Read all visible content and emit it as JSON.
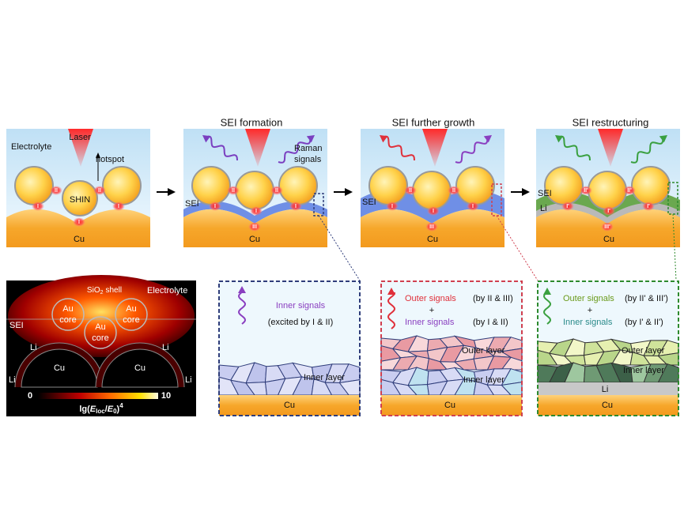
{
  "top_panels": [
    {
      "electrolyte": "Electrolyte",
      "laser": "Laser",
      "hotspot": "hotspot",
      "particle": "SHIN",
      "substrate": "Cu",
      "hotspots": [
        "II",
        "II",
        "I",
        "I",
        "I"
      ]
    },
    {
      "title": "SEI formation",
      "raman": [
        "Raman",
        "signals"
      ],
      "sei": "SEI",
      "substrate": "Cu",
      "hotspots": [
        "II",
        "II",
        "I",
        "I",
        "I",
        "III"
      ]
    },
    {
      "title": "SEI further growth",
      "sei": "SEI",
      "substrate": "Cu",
      "hotspots": [
        "II",
        "II",
        "I",
        "I",
        "I",
        "III"
      ]
    },
    {
      "title": "SEI restructuring",
      "sei": "SEI",
      "li": "Li",
      "substrate": "Cu",
      "hotspots": [
        "II'",
        "II'",
        "I'",
        "I'",
        "I'",
        "III'"
      ]
    }
  ],
  "simulation": {
    "shell": {
      "formula": "SiO",
      "subscript": "2",
      "word": "shell"
    },
    "electrolyte": "Electrolyte",
    "cores": [
      [
        "Au",
        "core"
      ],
      [
        "Au",
        "core"
      ],
      [
        "Au",
        "core"
      ]
    ],
    "sei": "SEI",
    "li": [
      "Li",
      "Li",
      "Li",
      "Li"
    ],
    "substrate": [
      "Cu",
      "Cu"
    ],
    "colorbar": {
      "min": 0,
      "max": 10,
      "label": [
        "lg(",
        "E",
        "loc",
        "/",
        "E",
        "0",
        ")",
        "4"
      ]
    }
  },
  "zooms": [
    {
      "signals": "Inner signals",
      "source": "(excited by I & II)",
      "inner_layer": "Inner layer",
      "substrate": "Cu"
    },
    {
      "outer_signals": "Outer signals",
      "outer_source": "(by II & III)",
      "plus": "+",
      "inner_signals": "Inner signals",
      "inner_source": "(by I & II)",
      "outer_layer": "Outer layer",
      "inner_layer": "Inner layer",
      "substrate": "Cu"
    },
    {
      "outer_signals": "Outer signals",
      "outer_source": "(by II' & III')",
      "plus": "+",
      "inner_signals": "Inner signals",
      "inner_source": "(by I' & II')",
      "outer_layer": "Outer layer",
      "inner_layer": "Inner layer",
      "li": "Li",
      "substrate": "Cu"
    }
  ]
}
